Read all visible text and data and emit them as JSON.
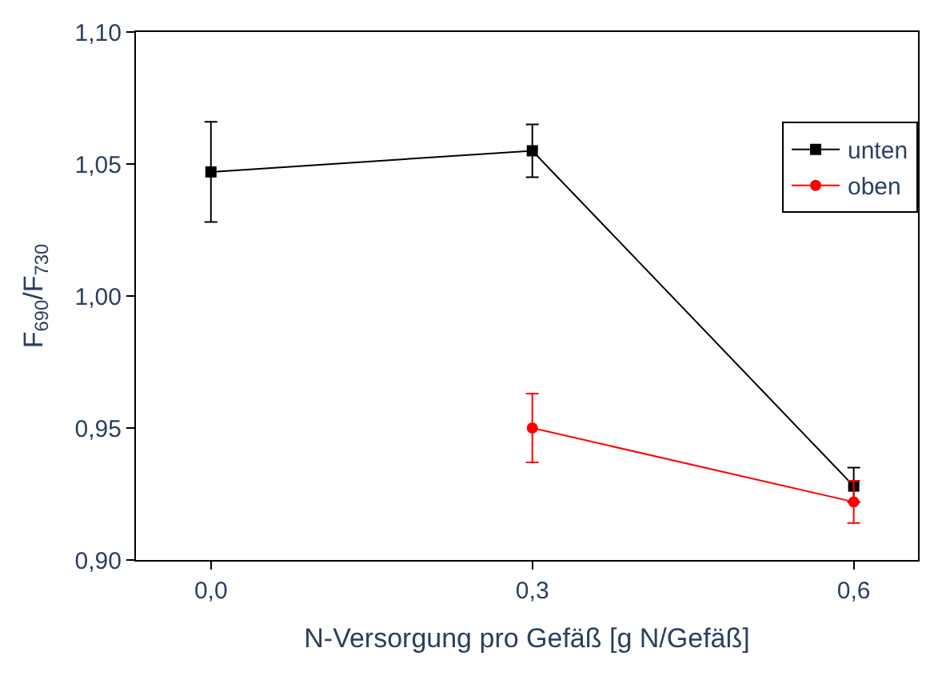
{
  "chart_data": {
    "type": "line",
    "xlabel": "N-Versorgung pro Gefäß [g N/Gefäß]",
    "ylabel": "F$_{690}$/F$_{730}$",
    "xlim": [
      -0.07,
      0.66
    ],
    "xticks": [
      {
        "value": 0,
        "label": "0,0"
      },
      {
        "value": 0.3,
        "label": "0,3"
      },
      {
        "value": 0.6,
        "label": "0,6"
      }
    ],
    "ylim": [
      0.9,
      1.1
    ],
    "yticks": [
      {
        "value": 0.9,
        "label": "0,90"
      },
      {
        "value": 0.95,
        "label": "0,95"
      },
      {
        "value": 1.0,
        "label": "1,00"
      },
      {
        "value": 1.05,
        "label": "1,05"
      },
      {
        "value": 1.1,
        "label": "1,10"
      }
    ],
    "legend": "top right",
    "series": [
      {
        "name": "unten",
        "color": "#000000",
        "marker": "square",
        "x": [
          0,
          0.3,
          0.6
        ],
        "values": [
          1.047,
          1.055,
          0.928
        ],
        "errors": [
          [
            1.028,
            1.066
          ],
          [
            1.045,
            1.065
          ],
          [
            0.922,
            0.935
          ]
        ]
      },
      {
        "name": "oben",
        "color": "#ff0000",
        "marker": "circle",
        "x": [
          0.3,
          0.6
        ],
        "values": [
          0.95,
          0.922
        ],
        "errors": [
          [
            0.937,
            0.963
          ],
          [
            0.914,
            0.93
          ]
        ]
      }
    ]
  }
}
